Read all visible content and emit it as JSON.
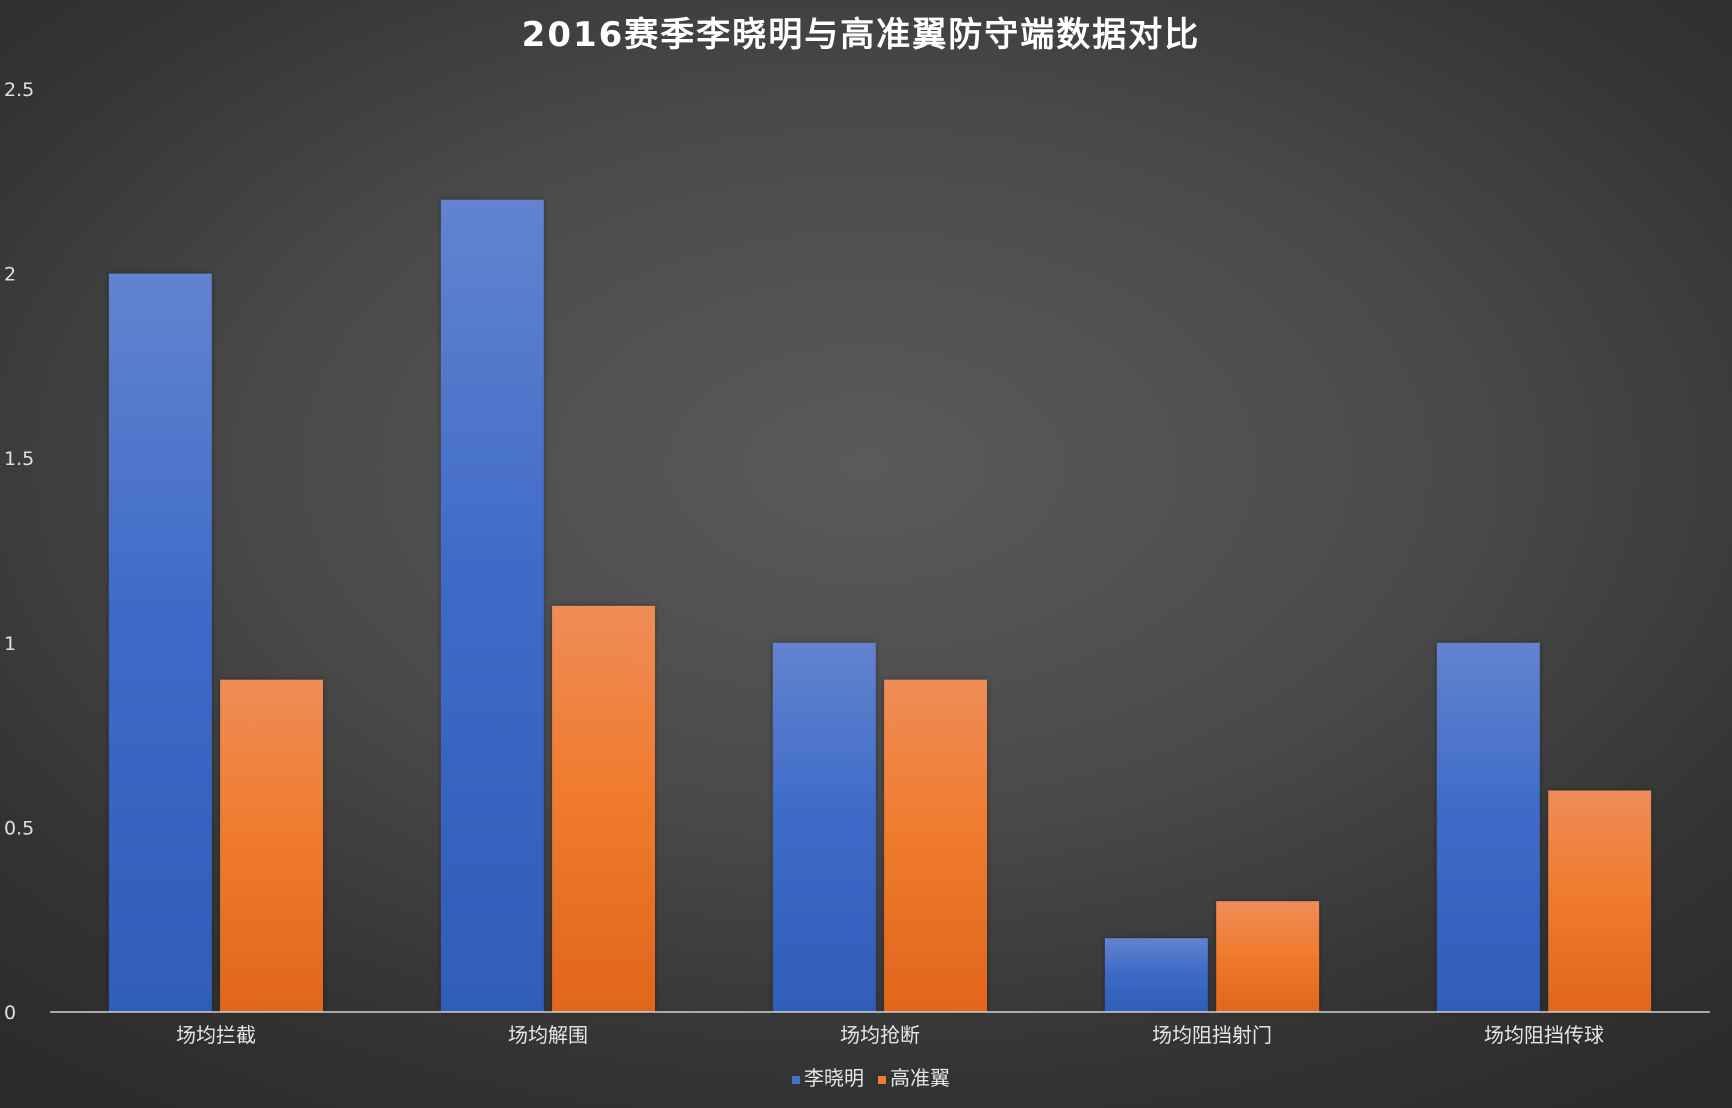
{
  "chart_data": {
    "type": "bar",
    "title": "2016赛季李晓明与高准翼防守端数据对比",
    "categories": [
      "场均拦截",
      "场均解围",
      "场均抢断",
      "场均阻挡射门",
      "场均阻挡传球"
    ],
    "series": [
      {
        "name": "李晓明",
        "values": [
          2,
          2.2,
          1,
          0.2,
          1
        ],
        "color": "#4472c4"
      },
      {
        "name": "高准翼",
        "values": [
          0.9,
          1.1,
          0.9,
          0.3,
          0.6
        ],
        "color": "#ed7d31"
      }
    ],
    "ylim": [
      0,
      2.5
    ],
    "yticks": [
      "0",
      "0.5",
      "1",
      "1.5",
      "2",
      "2.5"
    ],
    "xlabel": "",
    "ylabel": "",
    "grid": false,
    "legend_position": "bottom"
  }
}
